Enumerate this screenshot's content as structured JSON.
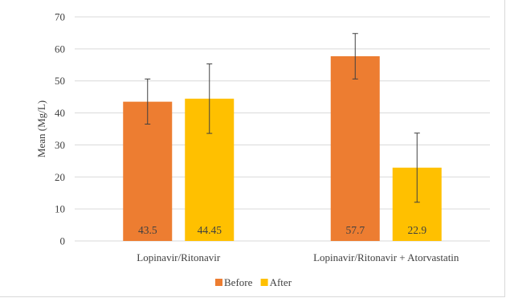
{
  "chart_data": {
    "type": "bar",
    "title": "",
    "xlabel": "",
    "ylabel": "Mean (Mg/L)",
    "ylim": [
      0,
      70
    ],
    "yticks": [
      0,
      10,
      20,
      30,
      40,
      50,
      60,
      70
    ],
    "grid": true,
    "legend_position": "bottom",
    "categories": [
      "Lopinavir/Ritonavir",
      "Lopinavir/Ritonavir + Atorvastatin"
    ],
    "series": [
      {
        "name": "Before",
        "color": "#ED7D31",
        "values": [
          43.5,
          57.7
        ],
        "labels": [
          "43.5",
          "57.7"
        ],
        "error_low": [
          36.5,
          50.6
        ],
        "error_high": [
          50.6,
          64.8
        ]
      },
      {
        "name": "After",
        "color": "#FFC000",
        "values": [
          44.45,
          22.9
        ],
        "labels": [
          "44.45",
          "22.9"
        ],
        "error_low": [
          33.6,
          12.1
        ],
        "error_high": [
          55.3,
          33.7
        ]
      }
    ]
  }
}
